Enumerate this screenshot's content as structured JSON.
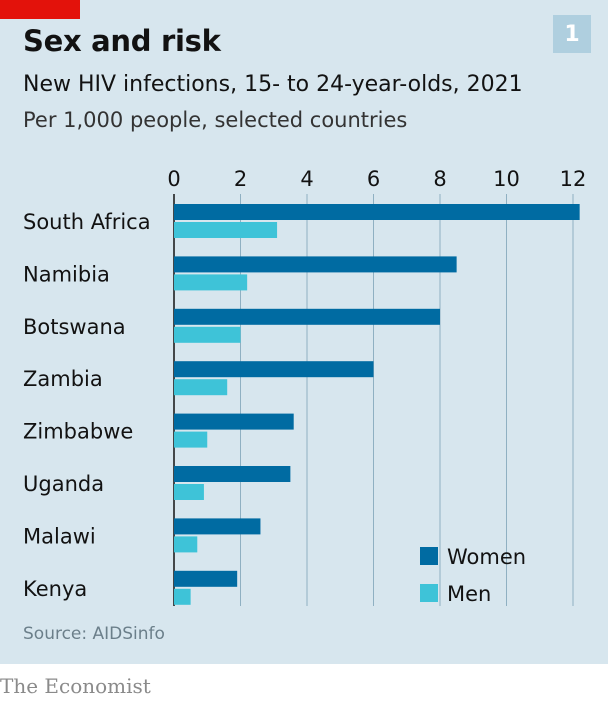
{
  "header": {
    "badge": "1",
    "title": "Sex and risk",
    "subtitle": "New HIV infections, 15- to 24-year-olds, 2021",
    "unit": "Per 1,000 people, selected countries"
  },
  "source": "Source: AIDSinfo",
  "footer": "The Economist",
  "colors": {
    "women": "#006ba2",
    "men": "#3ec3d8",
    "brand_red": "#e3120b",
    "background": "#d7e6ee"
  },
  "chart_data": {
    "type": "bar",
    "orientation": "horizontal",
    "categories": [
      "South Africa",
      "Namibia",
      "Botswana",
      "Zambia",
      "Zimbabwe",
      "Uganda",
      "Malawi",
      "Kenya"
    ],
    "series": [
      {
        "name": "Women",
        "values": [
          12.2,
          8.5,
          8.0,
          6.0,
          3.6,
          3.5,
          2.6,
          1.9
        ]
      },
      {
        "name": "Men",
        "values": [
          3.1,
          2.2,
          2.0,
          1.6,
          1.0,
          0.9,
          0.7,
          0.5
        ]
      }
    ],
    "xlim": [
      0,
      12
    ],
    "xticks": [
      0,
      2,
      4,
      6,
      8,
      10,
      12
    ],
    "grid": true,
    "legend": "bottom-right"
  }
}
